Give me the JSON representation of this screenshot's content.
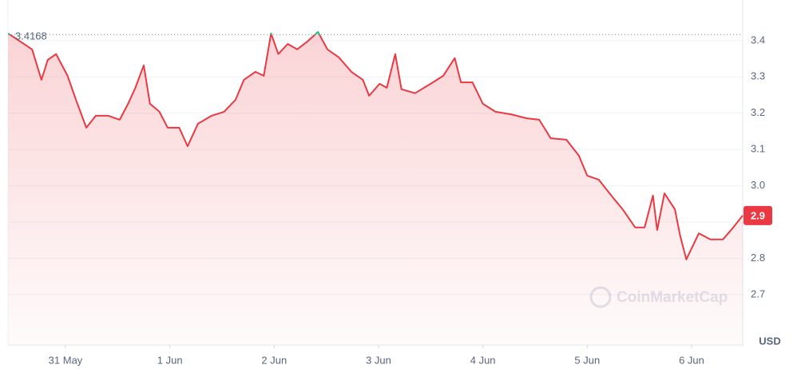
{
  "chart_data": {
    "type": "line",
    "color": "#ea3943",
    "up_color": "#16c784",
    "x": [
      -0.55,
      -0.32,
      -0.23,
      -0.17,
      -0.09,
      0.02,
      0.1,
      0.2,
      0.29,
      0.41,
      0.52,
      0.6,
      0.67,
      0.75,
      0.81,
      0.9,
      0.98,
      1.09,
      1.17,
      1.27,
      1.4,
      1.52,
      1.63,
      1.71,
      1.82,
      1.9,
      1.97,
      2.04,
      2.13,
      2.22,
      2.32,
      2.42,
      2.51,
      2.62,
      2.74,
      2.85,
      2.91,
      3.01,
      3.08,
      3.16,
      3.22,
      3.35,
      3.5,
      3.62,
      3.73,
      3.79,
      3.9,
      4.0,
      4.12,
      4.27,
      4.42,
      4.54,
      4.65,
      4.8,
      4.92,
      5.0,
      5.11,
      5.23,
      5.34,
      5.46,
      5.55,
      5.63,
      5.67,
      5.74,
      5.84,
      5.89,
      5.95,
      6.07,
      6.18,
      6.3,
      6.4,
      6.49
    ],
    "values": [
      3.42,
      3.376,
      3.292,
      3.347,
      3.363,
      3.303,
      3.237,
      3.16,
      3.193,
      3.193,
      3.182,
      3.226,
      3.27,
      3.332,
      3.226,
      3.204,
      3.16,
      3.16,
      3.109,
      3.171,
      3.193,
      3.204,
      3.237,
      3.292,
      3.314,
      3.303,
      3.42,
      3.363,
      3.391,
      3.376,
      3.398,
      3.424,
      3.376,
      3.354,
      3.314,
      3.292,
      3.248,
      3.281,
      3.27,
      3.363,
      3.266,
      3.255,
      3.281,
      3.303,
      3.352,
      3.285,
      3.285,
      3.226,
      3.204,
      3.197,
      3.186,
      3.182,
      3.131,
      3.127,
      3.083,
      3.028,
      3.017,
      2.973,
      2.935,
      2.885,
      2.885,
      2.973,
      2.878,
      2.979,
      2.935,
      2.863,
      2.797,
      2.869,
      2.852,
      2.852,
      2.885,
      2.918
    ],
    "reference": 3.4168,
    "current_label": "2.9",
    "xlim": [
      -0.551,
      6.49
    ],
    "xticks": [
      {
        "value": 0,
        "label": "31 May"
      },
      {
        "value": 1,
        "label": "1 Jun"
      },
      {
        "value": 2,
        "label": "2 Jun"
      },
      {
        "value": 3,
        "label": "3 Jun"
      },
      {
        "value": 4,
        "label": "4 Jun"
      },
      {
        "value": 5,
        "label": "5 Jun"
      },
      {
        "value": 6,
        "label": "6 Jun"
      }
    ],
    "ylim": [
      2.561,
      3.512
    ],
    "yticks": [
      2.7,
      2.8,
      2.9,
      {
        "value": 3,
        "label": "3.0"
      },
      3.1,
      3.2,
      3.3,
      3.4
    ],
    "y_unit": "USD",
    "watermark": "CoinMarketCap",
    "grid": true
  }
}
